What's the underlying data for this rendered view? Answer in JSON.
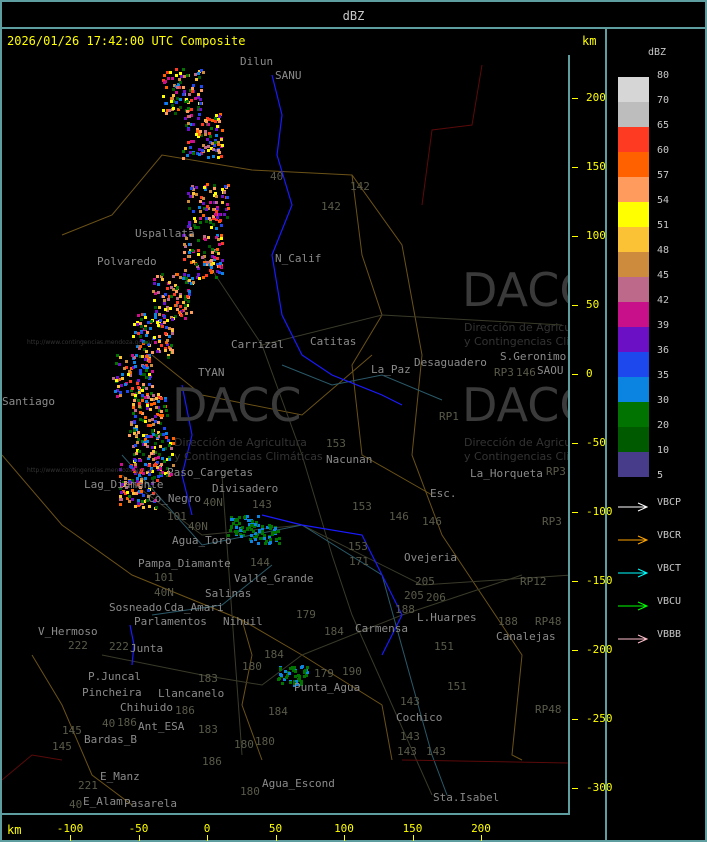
{
  "header": {
    "title": "dBZ"
  },
  "map": {
    "timestamp": "2026/01/26 17:42:00 UTC Composite",
    "unit_top": "km",
    "unit_bottom": "km",
    "x_ticks": [
      -100,
      -50,
      0,
      50,
      100,
      150,
      200
    ],
    "y_ticks": [
      200,
      150,
      100,
      50,
      0,
      -50,
      -100,
      -150,
      -200,
      -250,
      -300
    ],
    "watermark": {
      "logo": "DACC",
      "line1": "Dirección de Agricultura",
      "line2": "y Contingencias Climáticas",
      "url": "http://www.contingencias.mendoza.gov.ar"
    },
    "places": [
      "Dilun",
      "SANU",
      "Uspallata",
      "Polvaredo",
      "N_Calif",
      "Carrizal",
      "Catitas",
      "S.Geronimo",
      "SAOU",
      "Desaguadero",
      "La_Paz",
      "Lag_Diamante",
      "Co_Negro",
      "Paso_Cargetas",
      "Divisadero",
      "Nacunan",
      "La_Horqueta",
      "Esc.",
      "Agua_Toro",
      "Pampa_Diamante",
      "Valle_Grande",
      "Salinas",
      "Cda_Amari",
      "Parlamentos",
      "Sosneado",
      "Nihuil",
      "V_Hermoso",
      "Junta",
      "P.Juncal",
      "Pincheira",
      "Llancanelo",
      "Chihuido",
      "Ant_ESA",
      "Bardas_B",
      "E_Manz",
      "E_Alam",
      "Pasarela",
      "Agua_Escond",
      "Punta_Agua",
      "Carmensa",
      "L.Huarpes",
      "Canalejas",
      "Ovejeria",
      "Cochico",
      "Sta.Isabel",
      "Santiago",
      "TYAN"
    ],
    "routes": [
      "40",
      "142",
      "142",
      "153",
      "153",
      "146",
      "146",
      "146",
      "RP3",
      "RP3",
      "RP1",
      "RP3",
      "RP12",
      "RP48",
      "RP48",
      "143",
      "143",
      "101",
      "101",
      "40N",
      "40N",
      "40N",
      "144",
      "180",
      "180",
      "184",
      "184",
      "179",
      "179",
      "190",
      "184",
      "183",
      "183",
      "186",
      "186",
      "186",
      "180",
      "180",
      "222",
      "222",
      "145",
      "145",
      "221",
      "40",
      "40",
      "171",
      "205",
      "205",
      "206",
      "188",
      "188",
      "151",
      "151",
      "143",
      "143",
      "143",
      "153"
    ]
  },
  "legend": {
    "title": "dBZ",
    "scale": [
      {
        "value": "80",
        "color": "#d6d6d6"
      },
      {
        "value": "70",
        "color": "#bdbdbd"
      },
      {
        "value": "65",
        "color": "#ff3a22"
      },
      {
        "value": "60",
        "color": "#ff6000"
      },
      {
        "value": "57",
        "color": "#ff9b5c"
      },
      {
        "value": "54",
        "color": "#ffff00"
      },
      {
        "value": "51",
        "color": "#fbc236"
      },
      {
        "value": "48",
        "color": "#cd8b3e"
      },
      {
        "value": "45",
        "color": "#bd698a"
      },
      {
        "value": "42",
        "color": "#c8108a"
      },
      {
        "value": "39",
        "color": "#6c10c6"
      },
      {
        "value": "36",
        "color": "#1c48ee"
      },
      {
        "value": "35",
        "color": "#0a84e0"
      },
      {
        "value": "30",
        "color": "#007300"
      },
      {
        "value": "20",
        "color": "#005a00"
      },
      {
        "value": "10",
        "color": "#463c8a"
      },
      {
        "value": "5",
        "color": ""
      }
    ],
    "radars": [
      {
        "name": "VBCP",
        "color": "#ffffff"
      },
      {
        "name": "VBCR",
        "color": "#ffa500"
      },
      {
        "name": "VBCT",
        "color": "#00ffff"
      },
      {
        "name": "VBCU",
        "color": "#00ff00"
      },
      {
        "name": "VBBB",
        "color": "#ffc0cb"
      }
    ]
  }
}
